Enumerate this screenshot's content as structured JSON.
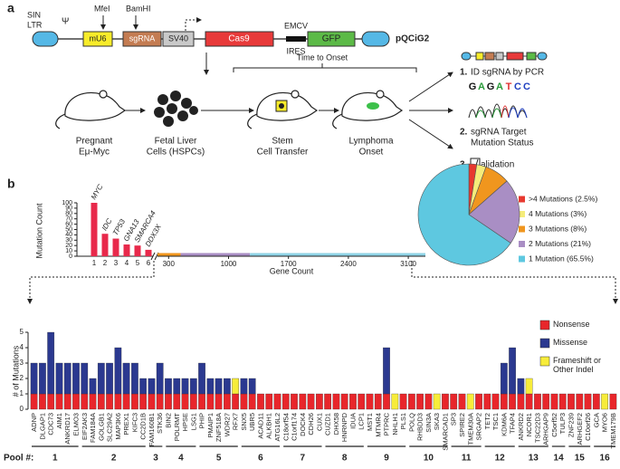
{
  "panel_a": {
    "label": "a",
    "vector": {
      "ltr": [
        "SIN",
        "LTR"
      ],
      "psi": "Ψ",
      "sites": [
        "MfeI",
        "BamHI"
      ],
      "parts": [
        "mU6",
        "sgRNA",
        "SV40",
        "Cas9",
        "GFP"
      ],
      "emcv": "EMCV",
      "ires": "IRES",
      "name": "pQCiG2"
    },
    "time": "Time to Onset",
    "steps": [
      [
        "Pregnant",
        "Eμ-Myc"
      ],
      [
        "Fetal Liver",
        "Cells (HSPCs)"
      ],
      [
        "Stem",
        "Cell Transfer"
      ],
      [
        "Lymphoma",
        "Onset"
      ]
    ],
    "outputs": [
      {
        "num": "1.",
        "text": [
          "ID sgRNA by PCR"
        ]
      },
      {
        "num": "2.",
        "text": [
          "sgRNA Target",
          "Mutation Status"
        ]
      },
      {
        "num": "3.",
        "text": [
          "alidation"
        ]
      }
    ],
    "bases": [
      "G",
      "A",
      "G",
      "A",
      "T",
      "C",
      "C"
    ]
  },
  "panel_b_label": "b",
  "pool_label": "Pool #:",
  "chart_data": [
    {
      "type": "bar",
      "ylabel": "Mutation Count",
      "xlabel": "Gene Count",
      "categories": [
        "1",
        "2",
        "3",
        "4",
        "5",
        "6"
      ],
      "values": [
        100,
        42,
        33,
        22,
        20,
        12
      ],
      "annotations": [
        "MYC",
        "IDC",
        "TP53",
        "GNA13",
        "SMARCA4",
        "DDX3X"
      ],
      "color": "#e8294b",
      "ylim": [
        0,
        100
      ],
      "yticks": [
        0,
        10,
        20,
        30,
        40,
        50,
        60,
        70,
        80,
        90,
        100
      ],
      "x2lim": [
        170,
        3300
      ],
      "x2ticks": [
        300,
        1000,
        1700,
        2400,
        3100
      ],
      "ranges": [
        {
          "color": "#f0961e",
          "x": [
            170,
            440
          ]
        },
        {
          "color": "#a98ec4",
          "x": [
            440,
            1250
          ]
        },
        {
          "color": "#8fd3e6",
          "x": [
            1250,
            3300
          ]
        }
      ]
    },
    {
      "type": "pie",
      "labels": [
        ">4 Mutations (2.5%)",
        "4 Mutations (3%)",
        "3 Mutations (8%)",
        "2 Mutations (21%)",
        "1 Mutation (65.5%)"
      ],
      "values": [
        2.5,
        3,
        8,
        21,
        65.5
      ],
      "colors": [
        "#e8392f",
        "#f5ec7a",
        "#f0961e",
        "#a98ec4",
        "#5ec8e0"
      ]
    },
    {
      "type": "stacked_bar",
      "ylabel": "# of Mutations",
      "categories": [
        "ADNP",
        "DLGAP1",
        "CDC73",
        "AIM1",
        "ANKRD17",
        "ELMO3",
        "EIF2AK3",
        "FAM184A",
        "GOLGB1",
        "SLC29A2",
        "MAP3K6",
        "PREX1",
        "KIFC3",
        "CC2D1B",
        "FAM160B1",
        "STK36",
        "BIN2",
        "POLRMT",
        "HPSE",
        "LSG1",
        "PHIP",
        "PMAIP1",
        "ZNF518A",
        "WDR27",
        "RFX7",
        "SNX5",
        "UBR5",
        "ACAD11",
        "ALKBH1",
        "ATG16L2",
        "C18orf54",
        "C1orf174",
        "DOCK4",
        "CDH26",
        "CUX1",
        "CUZD1",
        "DHX58",
        "HNRNPD",
        "IDUA",
        "LCP1",
        "MST1",
        "MTMR4",
        "PTPRC",
        "NHLH1",
        "PLS1",
        "POLQ",
        "RHBDD3",
        "SIN3A",
        "SKA3",
        "SMARCAD1",
        "SP3",
        "SPIRE2",
        "TMEM30A",
        "SRGAP2",
        "TET2",
        "TSC1",
        "KDM6A",
        "TFAP4",
        "ANKRD2",
        "NCOR1",
        "TSC22D3",
        "ARHGAP9",
        "C5orf52",
        "TULP3",
        "ZNF239",
        "ARHGEF2",
        "C10orf26",
        "GCA",
        "MYO6",
        "TMEM179B"
      ],
      "series": [
        {
          "name": "Nonsense",
          "color": "#e8262b",
          "values": [
            1,
            1,
            1,
            1,
            1,
            1,
            1,
            1,
            1,
            1,
            1,
            1,
            1,
            1,
            1,
            1,
            1,
            1,
            1,
            1,
            1,
            1,
            1,
            1,
            1,
            1,
            1,
            1,
            1,
            1,
            1,
            1,
            1,
            1,
            1,
            1,
            1,
            1,
            1,
            1,
            1,
            1,
            1,
            0,
            1,
            1,
            1,
            1,
            0,
            1,
            1,
            1,
            0,
            1,
            1,
            1,
            1,
            1,
            1,
            1,
            1,
            1,
            1,
            1,
            1,
            1,
            1,
            1,
            0,
            1
          ]
        },
        {
          "name": "Missense",
          "color": "#2b3990",
          "values": [
            2,
            2,
            4,
            2,
            2,
            2,
            2,
            1,
            2,
            2,
            3,
            2,
            2,
            1,
            1,
            2,
            1,
            1,
            1,
            1,
            2,
            1,
            1,
            1,
            0,
            1,
            1,
            0,
            0,
            0,
            0,
            0,
            0,
            0,
            0,
            0,
            0,
            0,
            0,
            0,
            0,
            0,
            3,
            0,
            0,
            0,
            0,
            0,
            0,
            0,
            0,
            0,
            0,
            0,
            0,
            0,
            2,
            3,
            1,
            0,
            0,
            0,
            0,
            0,
            0,
            0,
            0,
            0,
            0,
            0
          ]
        },
        {
          "name": "Frameshift or Other Indel",
          "color": "#f7ec3a",
          "values": [
            0,
            0,
            0,
            0,
            0,
            0,
            0,
            0,
            0,
            0,
            0,
            0,
            0,
            0,
            0,
            0,
            0,
            0,
            0,
            0,
            0,
            0,
            0,
            0,
            1,
            0,
            0,
            0,
            0,
            0,
            0,
            0,
            0,
            0,
            0,
            0,
            0,
            0,
            0,
            0,
            0,
            0,
            0,
            1,
            0,
            0,
            0,
            0,
            1,
            0,
            0,
            0,
            1,
            0,
            0,
            0,
            0,
            0,
            0,
            1,
            0,
            0,
            0,
            0,
            0,
            0,
            0,
            0,
            1,
            0
          ]
        }
      ],
      "ylim": [
        0,
        5
      ],
      "yticks": [
        0,
        1,
        2,
        3,
        4,
        5
      ],
      "pools": [
        {
          "label": "1",
          "count": 6
        },
        {
          "label": "2",
          "count": 8
        },
        {
          "label": "3",
          "count": 2
        },
        {
          "label": "4",
          "count": 4
        },
        {
          "label": "5",
          "count": 5
        },
        {
          "label": "6",
          "count": 5
        },
        {
          "label": "7",
          "count": 5
        },
        {
          "label": "8",
          "count": 5
        },
        {
          "label": "9",
          "count": 5
        },
        {
          "label": "10",
          "count": 5
        },
        {
          "label": "11",
          "count": 4
        },
        {
          "label": "12",
          "count": 4
        },
        {
          "label": "13",
          "count": 4
        },
        {
          "label": "14",
          "count": 2
        },
        {
          "label": "15",
          "count": 3
        },
        {
          "label": "16",
          "count": 3
        }
      ]
    }
  ]
}
